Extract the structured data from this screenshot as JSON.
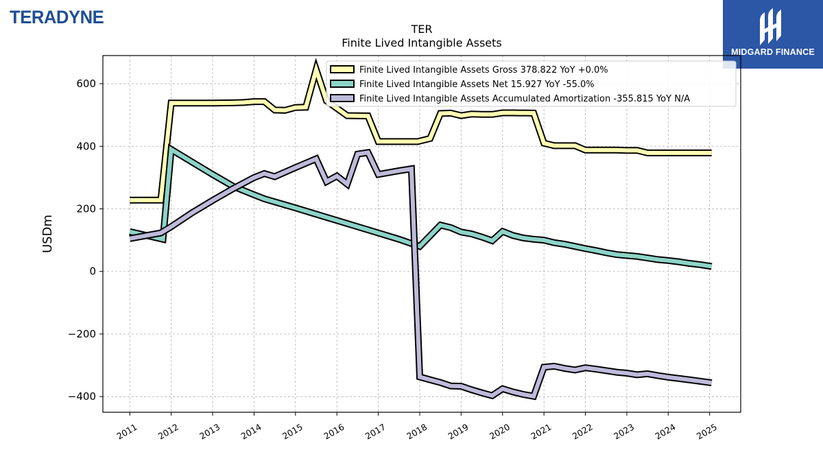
{
  "brand": {
    "left_logo_text": "TERADYNE",
    "right_logo_text": "MIDGARD FINANCE",
    "right_logo_bg": "#2c56a6"
  },
  "chart_data": {
    "type": "line",
    "title": "TER",
    "subtitle": "Finite Lived Intangible Assets",
    "xlabel": "",
    "ylabel": "USDm",
    "xlim": [
      2010.35,
      2025.75
    ],
    "ylim": [
      -450,
      690
    ],
    "yticks": [
      -400,
      -200,
      0,
      200,
      400,
      600
    ],
    "ytick_labels": [
      "−400",
      "−200",
      "0",
      "200",
      "400",
      "600"
    ],
    "xticks": [
      2011,
      2012,
      2013,
      2014,
      2015,
      2016,
      2017,
      2018,
      2019,
      2020,
      2021,
      2022,
      2023,
      2024,
      2025
    ],
    "grid": true,
    "legend_position": "top-right",
    "series": [
      {
        "name": "Finite Lived Intangible Assets Gross  378.822 YoY +0.0%",
        "color": "#ffffb3",
        "points": [
          [
            2011.0,
            228
          ],
          [
            2011.75,
            228
          ],
          [
            2012.0,
            538
          ],
          [
            2012.75,
            538
          ],
          [
            2013.0,
            538
          ],
          [
            2013.5,
            539
          ],
          [
            2013.75,
            540
          ],
          [
            2014.0,
            543
          ],
          [
            2014.25,
            543
          ],
          [
            2014.5,
            516
          ],
          [
            2014.75,
            515
          ],
          [
            2015.0,
            524
          ],
          [
            2015.25,
            525
          ],
          [
            2015.5,
            645
          ],
          [
            2015.75,
            545
          ],
          [
            2016.25,
            498
          ],
          [
            2016.75,
            497
          ],
          [
            2017.0,
            415
          ],
          [
            2017.5,
            415
          ],
          [
            2017.95,
            415
          ],
          [
            2018.25,
            425
          ],
          [
            2018.5,
            505
          ],
          [
            2018.75,
            506
          ],
          [
            2019.0,
            498
          ],
          [
            2019.25,
            503
          ],
          [
            2019.5,
            502
          ],
          [
            2019.75,
            502
          ],
          [
            2020.0,
            507
          ],
          [
            2020.25,
            507
          ],
          [
            2020.75,
            506
          ],
          [
            2021.0,
            410
          ],
          [
            2021.25,
            402
          ],
          [
            2021.5,
            402
          ],
          [
            2021.75,
            402
          ],
          [
            2022.0,
            388
          ],
          [
            2022.5,
            388
          ],
          [
            2022.75,
            388
          ],
          [
            2023.0,
            387
          ],
          [
            2023.25,
            387
          ],
          [
            2023.5,
            379
          ],
          [
            2024.0,
            379
          ],
          [
            2024.5,
            379
          ],
          [
            2025.05,
            379
          ]
        ]
      },
      {
        "name": "Finite Lived Intangible Assets Net  15.927 YoY -55.0%",
        "color": "#8dd3c7",
        "points": [
          [
            2011.0,
            127
          ],
          [
            2011.5,
            112
          ],
          [
            2011.8,
            103
          ],
          [
            2012.0,
            390
          ],
          [
            2012.5,
            350
          ],
          [
            2013.0,
            310
          ],
          [
            2013.5,
            272
          ],
          [
            2014.0,
            245
          ],
          [
            2014.25,
            232
          ],
          [
            2015.0,
            203
          ],
          [
            2015.5,
            183
          ],
          [
            2016.0,
            163
          ],
          [
            2016.5,
            143
          ],
          [
            2017.0,
            123
          ],
          [
            2017.5,
            103
          ],
          [
            2018.0,
            80
          ],
          [
            2018.5,
            148
          ],
          [
            2018.75,
            140
          ],
          [
            2019.0,
            126
          ],
          [
            2019.25,
            120
          ],
          [
            2019.5,
            110
          ],
          [
            2019.75,
            98
          ],
          [
            2020.0,
            128
          ],
          [
            2020.25,
            115
          ],
          [
            2020.5,
            107
          ],
          [
            2020.75,
            103
          ],
          [
            2021.0,
            100
          ],
          [
            2021.25,
            92
          ],
          [
            2021.5,
            87
          ],
          [
            2021.75,
            80
          ],
          [
            2022.0,
            73
          ],
          [
            2022.25,
            67
          ],
          [
            2022.5,
            60
          ],
          [
            2022.75,
            54
          ],
          [
            2023.0,
            51
          ],
          [
            2023.25,
            48
          ],
          [
            2023.5,
            43
          ],
          [
            2023.75,
            38
          ],
          [
            2024.0,
            35
          ],
          [
            2024.25,
            31
          ],
          [
            2024.5,
            26
          ],
          [
            2024.75,
            22
          ],
          [
            2025.05,
            16
          ]
        ]
      },
      {
        "name": "Finite Lived Intangible Assets Accumulated Amortization  -355.815 YoY N/A",
        "color": "#bebada",
        "points": [
          [
            2011.0,
            105
          ],
          [
            2011.75,
            123
          ],
          [
            2012.0,
            143
          ],
          [
            2012.5,
            187
          ],
          [
            2013.0,
            227
          ],
          [
            2013.5,
            265
          ],
          [
            2014.0,
            300
          ],
          [
            2014.25,
            313
          ],
          [
            2014.5,
            303
          ],
          [
            2015.0,
            332
          ],
          [
            2015.5,
            360
          ],
          [
            2015.75,
            287
          ],
          [
            2016.0,
            305
          ],
          [
            2016.25,
            279
          ],
          [
            2016.5,
            375
          ],
          [
            2016.75,
            380
          ],
          [
            2017.0,
            310
          ],
          [
            2017.5,
            322
          ],
          [
            2017.8,
            328
          ],
          [
            2018.0,
            -337
          ],
          [
            2018.5,
            -355
          ],
          [
            2018.75,
            -366
          ],
          [
            2019.0,
            -367
          ],
          [
            2019.25,
            -378
          ],
          [
            2019.5,
            -388
          ],
          [
            2019.75,
            -397
          ],
          [
            2020.0,
            -375
          ],
          [
            2020.25,
            -385
          ],
          [
            2020.5,
            -393
          ],
          [
            2020.75,
            -399
          ],
          [
            2021.0,
            -306
          ],
          [
            2021.25,
            -303
          ],
          [
            2021.5,
            -310
          ],
          [
            2021.75,
            -315
          ],
          [
            2022.0,
            -308
          ],
          [
            2022.25,
            -312
          ],
          [
            2022.5,
            -317
          ],
          [
            2022.75,
            -322
          ],
          [
            2023.0,
            -325
          ],
          [
            2023.25,
            -330
          ],
          [
            2023.5,
            -327
          ],
          [
            2023.75,
            -333
          ],
          [
            2024.0,
            -338
          ],
          [
            2024.5,
            -346
          ],
          [
            2025.05,
            -356
          ]
        ]
      }
    ]
  }
}
